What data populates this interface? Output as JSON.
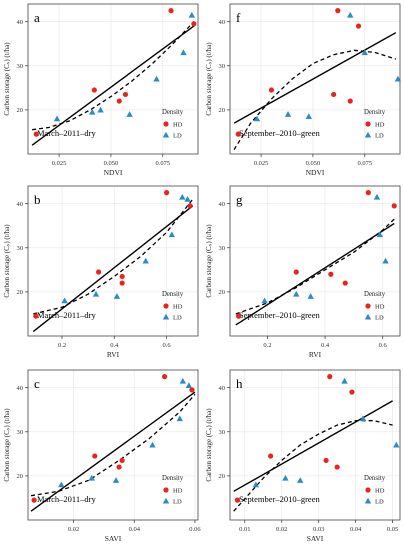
{
  "colors": {
    "hd": "#e8241d",
    "ld": "#2b8cc4",
    "line": "#000000",
    "panel_border": "#444444",
    "grid": "#ebebeb"
  },
  "chart_data": [
    {
      "type": "scatter",
      "panel_letter": "a",
      "annotation": "March–2011–dry",
      "xlabel": "NDVI",
      "ylabel": "Carbon storage (Cₛ) (t/ha)",
      "xlim": [
        0.01,
        0.092
      ],
      "ylim": [
        10,
        44
      ],
      "xticks": [
        0.025,
        0.05,
        0.075
      ],
      "xtick_labels": [
        "0.025",
        "0.050",
        "0.075"
      ],
      "yticks": [
        20,
        30,
        40
      ],
      "ytick_labels": [
        "20",
        "30",
        "40"
      ],
      "legend": {
        "title": "Density",
        "entries": [
          "HD",
          "LD"
        ],
        "position": "bottom-right"
      },
      "series": [
        {
          "name": "HD",
          "marker": "circle",
          "x": [
            0.014,
            0.042,
            0.054,
            0.057,
            0.079,
            0.09
          ],
          "y": [
            14.5,
            24.5,
            22.0,
            23.5,
            42.5,
            39.5
          ]
        },
        {
          "name": "LD",
          "marker": "triangle",
          "x": [
            0.024,
            0.041,
            0.045,
            0.059,
            0.072,
            0.085,
            0.089
          ],
          "y": [
            18.0,
            19.5,
            20.0,
            19.0,
            27.0,
            33.0,
            41.5
          ]
        }
      ],
      "linear_fit": {
        "x": [
          0.012,
          0.09
        ],
        "y": [
          12.0,
          39.0
        ]
      },
      "poly_fit": {
        "x": [
          0.012,
          0.02,
          0.03,
          0.04,
          0.05,
          0.06,
          0.07,
          0.08,
          0.09
        ],
        "y": [
          15.5,
          16.0,
          17.5,
          20.0,
          23.0,
          26.5,
          30.5,
          35.0,
          40.0
        ]
      }
    },
    {
      "type": "scatter",
      "panel_letter": "f",
      "annotation": "September–2010–green",
      "xlabel": "NDVI",
      "ylabel": "Carbon storage (Cₛ) (t/ha)",
      "xlim": [
        0.01,
        0.092
      ],
      "ylim": [
        10,
        44
      ],
      "xticks": [
        0.025,
        0.05,
        0.075
      ],
      "xtick_labels": [
        "0.025",
        "0.050",
        "0.075"
      ],
      "yticks": [
        20,
        30,
        40
      ],
      "ytick_labels": [
        "20",
        "30",
        "40"
      ],
      "legend": {
        "title": "Density",
        "entries": [
          "HD",
          "LD"
        ],
        "position": "bottom-right"
      },
      "series": [
        {
          "name": "HD",
          "marker": "circle",
          "x": [
            0.014,
            0.03,
            0.06,
            0.062,
            0.068,
            0.072
          ],
          "y": [
            14.5,
            24.5,
            23.5,
            42.5,
            22.0,
            39.0
          ]
        },
        {
          "name": "LD",
          "marker": "triangle",
          "x": [
            0.023,
            0.038,
            0.048,
            0.068,
            0.075,
            0.091
          ],
          "y": [
            18.0,
            19.0,
            18.5,
            41.5,
            33.0,
            27.0
          ]
        }
      ],
      "linear_fit": {
        "x": [
          0.012,
          0.09
        ],
        "y": [
          17.0,
          37.5
        ]
      },
      "poly_fit": {
        "x": [
          0.012,
          0.02,
          0.03,
          0.04,
          0.05,
          0.06,
          0.07,
          0.08,
          0.09
        ],
        "y": [
          11.0,
          17.0,
          22.5,
          27.0,
          30.5,
          32.5,
          33.5,
          33.0,
          31.5
        ]
      }
    },
    {
      "type": "scatter",
      "panel_letter": "b",
      "annotation": "March–2011–dry",
      "xlabel": "RVI",
      "ylabel": "Carbon storage (Cₛ) (t/ha)",
      "xlim": [
        0.07,
        0.72
      ],
      "ylim": [
        10,
        44
      ],
      "xticks": [
        0.2,
        0.4,
        0.6
      ],
      "xtick_labels": [
        "0.2",
        "0.4",
        "0.6"
      ],
      "yticks": [
        20,
        30,
        40
      ],
      "ytick_labels": [
        "20",
        "30",
        "40"
      ],
      "legend": {
        "title": "Density",
        "entries": [
          "HD",
          "LD"
        ],
        "position": "bottom-right"
      },
      "series": [
        {
          "name": "HD",
          "marker": "circle",
          "x": [
            0.1,
            0.34,
            0.43,
            0.43,
            0.6,
            0.69
          ],
          "y": [
            14.5,
            24.5,
            22.0,
            23.5,
            42.5,
            39.5
          ]
        },
        {
          "name": "LD",
          "marker": "triangle",
          "x": [
            0.21,
            0.33,
            0.41,
            0.52,
            0.62,
            0.66,
            0.68
          ],
          "y": [
            18.0,
            19.5,
            19.0,
            27.0,
            33.0,
            41.5,
            41.0
          ]
        }
      ],
      "linear_fit": {
        "x": [
          0.09,
          0.7
        ],
        "y": [
          11.0,
          39.5
        ]
      },
      "poly_fit": {
        "x": [
          0.09,
          0.2,
          0.3,
          0.4,
          0.5,
          0.6,
          0.7
        ],
        "y": [
          15.0,
          16.5,
          19.5,
          23.5,
          28.0,
          33.5,
          41.0
        ]
      }
    },
    {
      "type": "scatter",
      "panel_letter": "g",
      "annotation": "September–2010–green",
      "xlabel": "RVI",
      "ylabel": "Carbon storage (Cₛ) (t/ha)",
      "xlim": [
        0.07,
        0.66
      ],
      "ylim": [
        10,
        44
      ],
      "xticks": [
        0.2,
        0.4,
        0.6
      ],
      "xtick_labels": [
        "0.2",
        "0.4",
        "0.6"
      ],
      "yticks": [
        20,
        30,
        40
      ],
      "ytick_labels": [
        "20",
        "30",
        "40"
      ],
      "legend": {
        "title": "Density",
        "entries": [
          "HD",
          "LD"
        ],
        "position": "bottom-right"
      },
      "series": [
        {
          "name": "HD",
          "marker": "circle",
          "x": [
            0.1,
            0.3,
            0.42,
            0.47,
            0.55,
            0.64
          ],
          "y": [
            14.5,
            24.5,
            24.0,
            22.0,
            42.5,
            39.5
          ]
        },
        {
          "name": "LD",
          "marker": "triangle",
          "x": [
            0.19,
            0.3,
            0.35,
            0.58,
            0.59,
            0.61
          ],
          "y": [
            18.0,
            19.5,
            19.0,
            41.5,
            33.0,
            27.0
          ]
        }
      ],
      "linear_fit": {
        "x": [
          0.09,
          0.64
        ],
        "y": [
          12.5,
          35.5
        ]
      },
      "poly_fit": {
        "x": [
          0.09,
          0.2,
          0.3,
          0.4,
          0.5,
          0.6,
          0.64
        ],
        "y": [
          15.0,
          17.5,
          21.0,
          25.0,
          29.0,
          34.0,
          36.5
        ]
      }
    },
    {
      "type": "scatter",
      "panel_letter": "c",
      "annotation": "March–2011–dry",
      "xlabel": "SAVI",
      "ylabel": "Carbon storage (Cₛ) (t/ha)",
      "xlim": [
        0.005,
        0.061
      ],
      "ylim": [
        10,
        44
      ],
      "xticks": [
        0.02,
        0.04,
        0.06
      ],
      "xtick_labels": [
        "0.02",
        "0.04",
        "0.06"
      ],
      "yticks": [
        20,
        30,
        40
      ],
      "ytick_labels": [
        "20",
        "30",
        "40"
      ],
      "legend": {
        "title": "Density",
        "entries": [
          "HD",
          "LD"
        ],
        "position": "bottom-right"
      },
      "series": [
        {
          "name": "HD",
          "marker": "circle",
          "x": [
            0.007,
            0.027,
            0.035,
            0.036,
            0.05,
            0.059
          ],
          "y": [
            14.5,
            24.5,
            22.0,
            23.5,
            42.5,
            39.5
          ]
        },
        {
          "name": "LD",
          "marker": "triangle",
          "x": [
            0.016,
            0.026,
            0.034,
            0.046,
            0.055,
            0.056,
            0.058
          ],
          "y": [
            18.0,
            19.5,
            19.0,
            27.0,
            33.0,
            41.5,
            40.5
          ]
        }
      ],
      "linear_fit": {
        "x": [
          0.006,
          0.06
        ],
        "y": [
          12.0,
          39.0
        ]
      },
      "poly_fit": {
        "x": [
          0.006,
          0.015,
          0.025,
          0.035,
          0.045,
          0.055,
          0.06
        ],
        "y": [
          15.5,
          16.5,
          19.0,
          23.5,
          28.5,
          34.5,
          38.5
        ]
      }
    },
    {
      "type": "scatter",
      "panel_letter": "h",
      "annotation": "September–2010–green",
      "xlabel": "SAVI",
      "ylabel": "Carbon storage (Cₛ) (t/ha)",
      "xlim": [
        0.006,
        0.052
      ],
      "ylim": [
        10,
        44
      ],
      "xticks": [
        0.01,
        0.02,
        0.03,
        0.04,
        0.05
      ],
      "xtick_labels": [
        "0.01",
        "0.02",
        "0.03",
        "0.04",
        "0.05"
      ],
      "yticks": [
        20,
        30,
        40
      ],
      "ytick_labels": [
        "20",
        "30",
        "40"
      ],
      "legend": {
        "title": "Density",
        "entries": [
          "HD",
          "LD"
        ],
        "position": "bottom-right"
      },
      "series": [
        {
          "name": "HD",
          "marker": "circle",
          "x": [
            0.008,
            0.017,
            0.032,
            0.033,
            0.035,
            0.039
          ],
          "y": [
            14.5,
            24.5,
            23.5,
            42.5,
            22.0,
            39.0
          ]
        },
        {
          "name": "LD",
          "marker": "triangle",
          "x": [
            0.013,
            0.021,
            0.025,
            0.037,
            0.042,
            0.051
          ],
          "y": [
            18.0,
            19.5,
            19.0,
            41.5,
            33.0,
            27.0
          ]
        }
      ],
      "linear_fit": {
        "x": [
          0.007,
          0.05
        ],
        "y": [
          16.5,
          37.0
        ]
      },
      "poly_fit": {
        "x": [
          0.007,
          0.015,
          0.02,
          0.025,
          0.03,
          0.035,
          0.04,
          0.045,
          0.05
        ],
        "y": [
          12.0,
          19.5,
          23.5,
          27.0,
          29.5,
          31.5,
          32.5,
          32.5,
          31.5
        ]
      }
    }
  ]
}
